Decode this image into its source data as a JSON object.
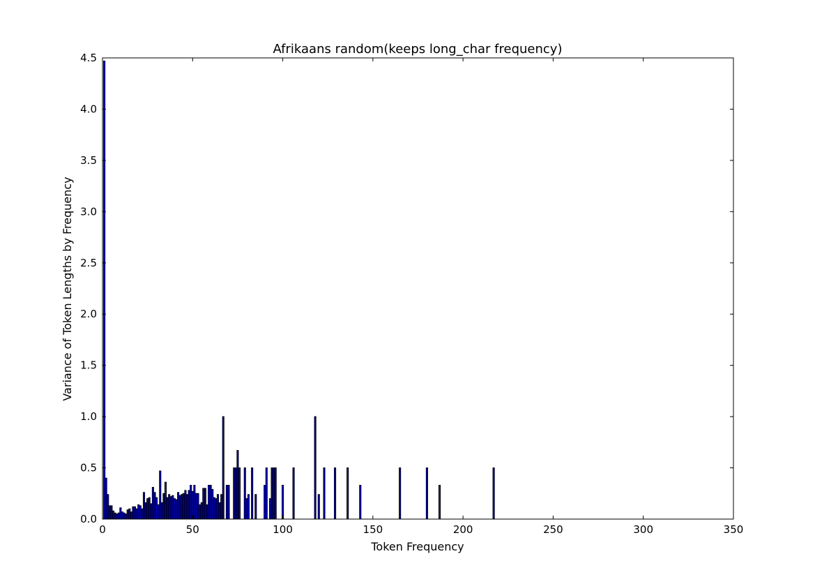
{
  "chart_data": {
    "type": "bar",
    "title": "Afrikaans random(keeps long_char frequency)",
    "xlabel": "Token Frequency",
    "ylabel": "Variance of Token Lengths by Frequency",
    "xlim": [
      0,
      350
    ],
    "ylim": [
      0,
      4.5
    ],
    "xticks": [
      "0",
      "50",
      "100",
      "150",
      "200",
      "250",
      "300",
      "350"
    ],
    "yticks": [
      "0.0",
      "0.5",
      "1.0",
      "1.5",
      "2.0",
      "2.5",
      "3.0",
      "3.5",
      "4.0",
      "4.5"
    ],
    "grid": false,
    "legend": "none",
    "bar_color": "#0000ff",
    "edge_color": "#000000",
    "x": [
      1,
      2,
      3,
      4,
      5,
      6,
      7,
      8,
      9,
      10,
      11,
      12,
      13,
      14,
      15,
      16,
      17,
      18,
      19,
      20,
      21,
      22,
      23,
      24,
      25,
      26,
      27,
      28,
      29,
      30,
      31,
      32,
      33,
      34,
      35,
      36,
      37,
      38,
      39,
      40,
      41,
      42,
      43,
      44,
      45,
      46,
      47,
      48,
      49,
      50,
      51,
      52,
      53,
      54,
      55,
      56,
      57,
      58,
      59,
      60,
      61,
      62,
      63,
      64,
      65,
      66,
      67,
      69,
      70,
      73,
      74,
      75,
      76,
      79,
      80,
      81,
      83,
      85,
      90,
      91,
      93,
      94,
      95,
      96,
      100,
      106,
      118,
      120,
      123,
      129,
      136,
      143,
      165,
      180,
      187,
      217
    ],
    "values": [
      4.47,
      0.4,
      0.24,
      0.13,
      0.13,
      0.08,
      0.06,
      0.05,
      0.06,
      0.11,
      0.07,
      0.06,
      0.05,
      0.09,
      0.1,
      0.07,
      0.12,
      0.12,
      0.1,
      0.14,
      0.13,
      0.1,
      0.26,
      0.16,
      0.2,
      0.21,
      0.15,
      0.31,
      0.26,
      0.21,
      0.14,
      0.47,
      0.16,
      0.25,
      0.36,
      0.21,
      0.24,
      0.22,
      0.23,
      0.2,
      0.19,
      0.26,
      0.23,
      0.24,
      0.25,
      0.28,
      0.24,
      0.28,
      0.33,
      0.27,
      0.33,
      0.25,
      0.25,
      0.14,
      0.16,
      0.3,
      0.3,
      0.14,
      0.33,
      0.33,
      0.29,
      0.21,
      0.2,
      0.24,
      0.16,
      0.24,
      1.0,
      0.33,
      0.33,
      0.5,
      0.5,
      0.67,
      0.5,
      0.5,
      0.2,
      0.24,
      0.5,
      0.24,
      0.33,
      0.5,
      0.2,
      0.5,
      0.5,
      0.5,
      0.33,
      0.5,
      1.0,
      0.24,
      0.5,
      0.5,
      0.5,
      0.33,
      0.5,
      0.5,
      0.33,
      0.5
    ]
  }
}
